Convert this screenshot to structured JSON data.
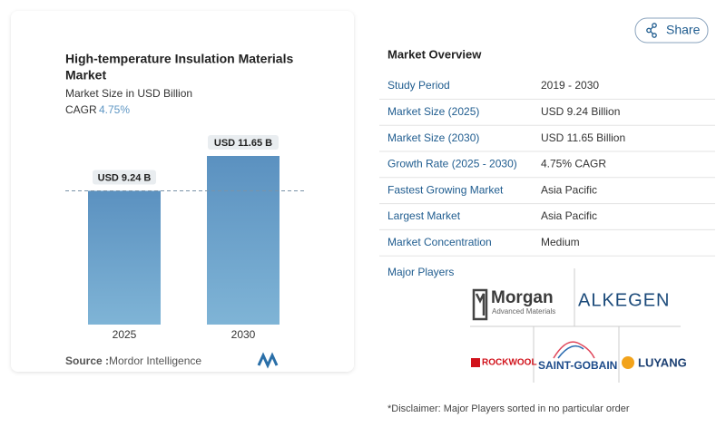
{
  "share_button": "Share",
  "chart_data": {
    "type": "bar",
    "title": "High-temperature Insulation Materials Market",
    "subtitle": "Market Size in USD Billion",
    "cagr_label": "CAGR",
    "cagr_value": "4.75%",
    "categories": [
      "2025",
      "2030"
    ],
    "values": [
      9.24,
      11.65
    ],
    "value_labels": [
      "USD 9.24 B",
      "USD 11.65 B"
    ],
    "color": "#5f97c4",
    "source_label": "Source :",
    "source": "Mordor Intelligence"
  },
  "overview": {
    "title": "Market Overview",
    "rows": [
      [
        "Study Period",
        "2019 - 2030"
      ],
      [
        "Market Size (2025)",
        "USD 9.24 Billion"
      ],
      [
        "Market Size (2030)",
        "USD 11.65 Billion"
      ],
      [
        "Growth Rate (2025 - 2030)",
        "4.75% CAGR"
      ],
      [
        "Fastest Growing Market",
        "Asia Pacific"
      ],
      [
        "Largest Market",
        "Asia Pacific"
      ],
      [
        "Market Concentration",
        "Medium"
      ]
    ]
  },
  "major_players": {
    "title": "Major Players",
    "logos": {
      "morgan": "Morgan",
      "morgan_sub": "Advanced Materials",
      "alkegen": "ALKEGEN",
      "rockwool": "ROCKWOOL",
      "saint_gobain": "SAINT-GOBAIN",
      "luyang": "LUYANG"
    }
  },
  "disclaimer": "*Disclaimer: Major Players sorted in no particular order"
}
